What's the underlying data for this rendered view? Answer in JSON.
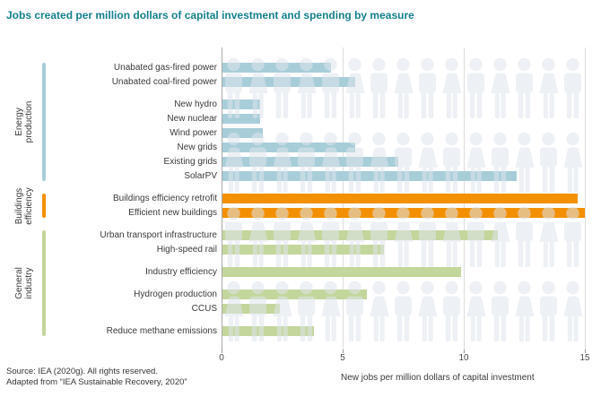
{
  "title": "Jobs created per million dollars of capital investment and spending by measure",
  "x_axis": {
    "title": "New jobs per million dollars of capital investment",
    "tick_labels": [
      "0",
      "5",
      "10",
      "15"
    ]
  },
  "source": {
    "line1": "Source: IEA (2020g). All rights reserved.",
    "line2": "Adapted from “IEA Sustainable Recovery, 2020”"
  },
  "icons": {
    "background": "person-silhouette-icon"
  },
  "colors": {
    "title": "#15808d",
    "energy_production": "#a7cdd9",
    "buildings_efficiency": "#f39000",
    "general_industry": "#c3d69b",
    "pictogram_people": "#dfe5ec",
    "gridline": "#dcdcdc",
    "zero_axis": "#a9a9a9",
    "tick": "#999999",
    "label_text": "#3a3a3a"
  },
  "chart_data": {
    "type": "bar",
    "orientation": "horizontal",
    "title": "Jobs created per million dollars of capital investment and spending by measure",
    "xlabel": "New jobs per million dollars of capital investment",
    "xlim": [
      0,
      15
    ],
    "xticks": [
      0,
      5,
      10,
      15
    ],
    "grid": true,
    "background_pictogram": {
      "icon": "person-silhouette",
      "rows": 4,
      "per_row": 15,
      "alternating": [
        "male",
        "female"
      ]
    },
    "groups": [
      {
        "name": "Energy production",
        "color": "#a7cdd9",
        "items": [
          {
            "label": "Unabated gas-fired power",
            "value": 4.5
          },
          {
            "label": "Unabated coal-fired power",
            "value": 5.5
          },
          {
            "label": "New hydro",
            "value": 1.6,
            "space_before": true
          },
          {
            "label": "New nuclear",
            "value": 1.6
          },
          {
            "label": "Wind power",
            "value": 1.7
          },
          {
            "label": "New grids",
            "value": 5.5
          },
          {
            "label": "Existing grids",
            "value": 7.3
          },
          {
            "label": "SolarPV",
            "value": 12.2
          }
        ]
      },
      {
        "name": "Buildings efficiency",
        "color": "#f39000",
        "items": [
          {
            "label": "Buildings efficiency retrofit",
            "value": 14.7
          },
          {
            "label": "Efficient new buildings",
            "value": 15.0
          }
        ]
      },
      {
        "name": "General industry",
        "color": "#c3d69b",
        "items": [
          {
            "label": "Urban transport infrastructure",
            "value": 11.4
          },
          {
            "label": "High-speed rail",
            "value": 6.7
          },
          {
            "label": "Industry efficiency",
            "value": 9.9,
            "space_before": true
          },
          {
            "label": "Hydrogen production",
            "value": 6.0,
            "space_before": true
          },
          {
            "label": "CCUS",
            "value": 2.4
          },
          {
            "label": "Reduce methane emissions",
            "value": 3.8,
            "space_before": true
          }
        ]
      }
    ]
  }
}
